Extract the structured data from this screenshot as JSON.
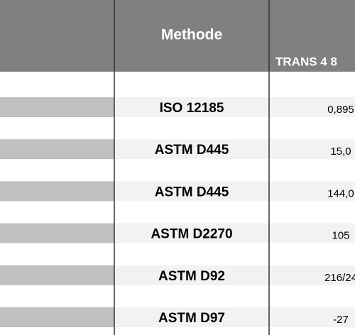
{
  "header": {
    "method": "Methode",
    "product": "TRANS 4 8"
  },
  "rows": [
    {
      "method": "ISO 12185",
      "value": "0,895"
    },
    {
      "method": "ASTM D445",
      "value": "15,0"
    },
    {
      "method": "ASTM D445",
      "value": "144,0"
    },
    {
      "method": "ASTM D2270",
      "value": "105"
    },
    {
      "method": "ASTM D92",
      "value": "216/24"
    },
    {
      "method": "ASTM D97",
      "value": "-27"
    }
  ]
}
